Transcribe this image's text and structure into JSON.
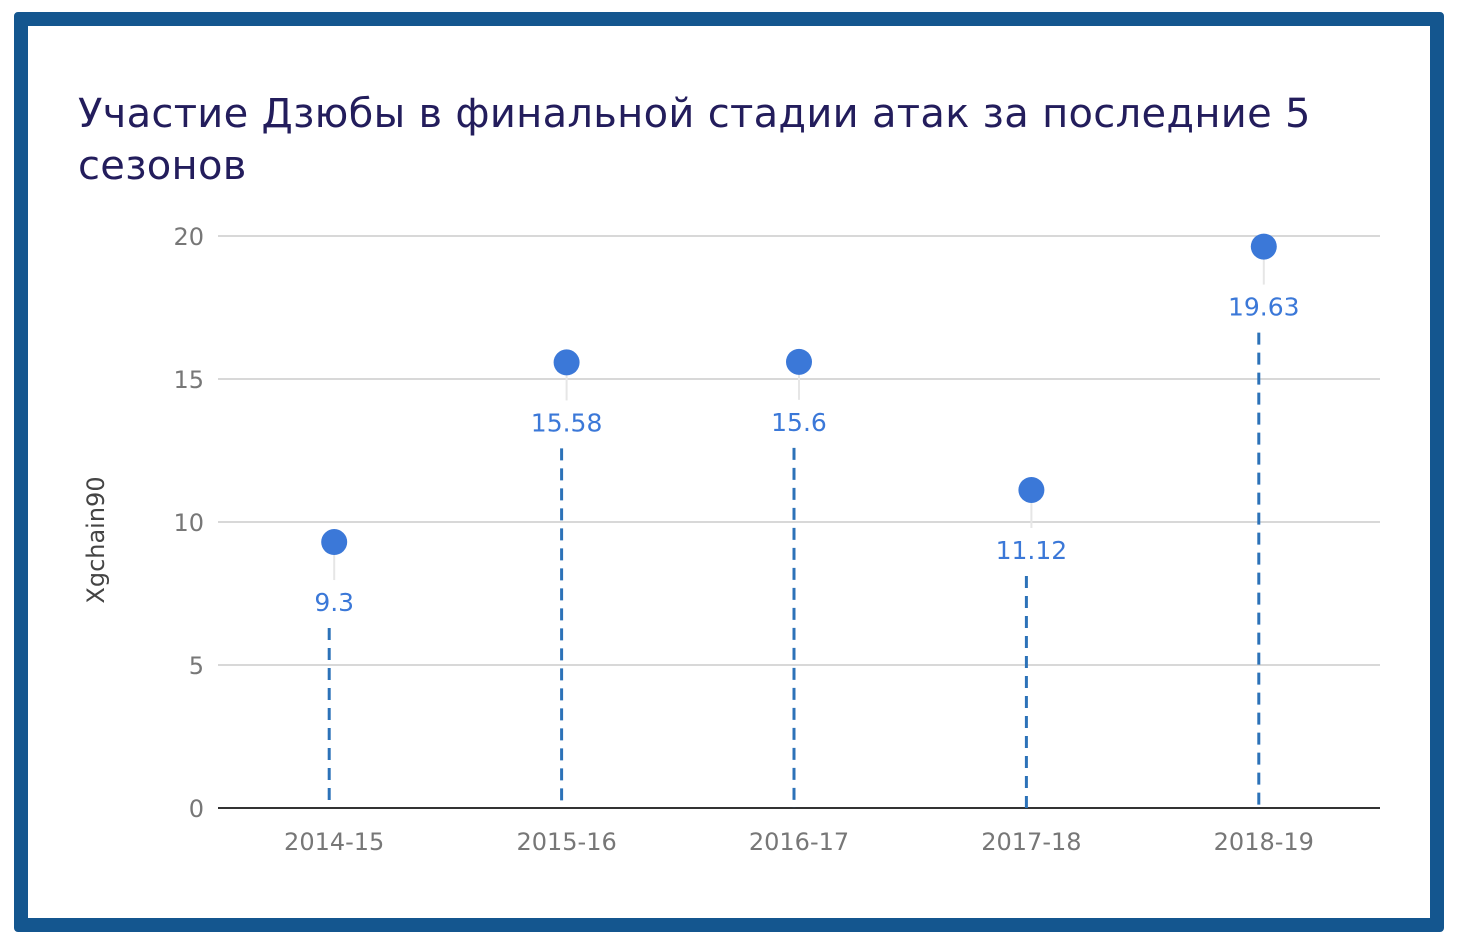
{
  "chart_data": {
    "type": "dot",
    "title": "Участие Дзюбы в финальной стадии атак за последние 5 сезонов",
    "y_label": "Xgchain90",
    "categories": [
      "2014-15",
      "2015-16",
      "2016-17",
      "2017-18",
      "2018-19"
    ],
    "values": [
      9.3,
      15.58,
      15.6,
      11.12,
      19.63
    ],
    "color": "#3b78d8",
    "ylim": [
      0,
      20
    ],
    "yticks": [
      0,
      5,
      10,
      15,
      20
    ],
    "grid": true
  }
}
